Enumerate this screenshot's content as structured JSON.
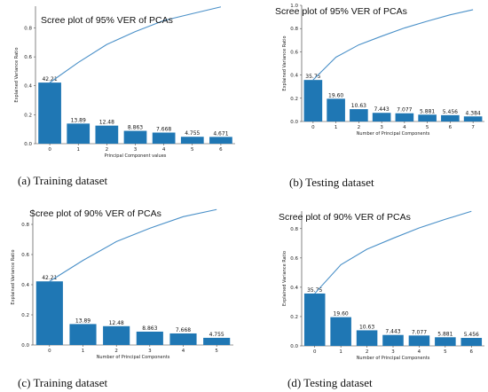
{
  "chart_data": [
    {
      "type": "bar",
      "title": "Scree plot of 95% VER of PCAs",
      "xlabel": "Principal Component values",
      "ylabel": "Explained Variance Ratio",
      "categories": [
        "0",
        "1",
        "2",
        "3",
        "4",
        "5",
        "6"
      ],
      "values": [
        0.4221,
        0.1389,
        0.1248,
        0.08863,
        0.07668,
        0.04755,
        0.04671
      ],
      "data_labels": [
        "42.21",
        "13.89",
        "12.48",
        "8.863",
        "7.668",
        "4.755",
        "4.671"
      ],
      "cumulative": [
        0.4221,
        0.561,
        0.6858,
        0.77443,
        0.85111,
        0.89866,
        0.94537
      ],
      "yticks": [
        "0.0",
        "0.2",
        "0.4",
        "0.6",
        "0.8"
      ],
      "ylim": [
        0,
        0.95
      ],
      "caption": "(a) Training dataset"
    },
    {
      "type": "bar",
      "title": "Scree plot of 95% VER of PCAs",
      "xlabel": "Number of Principal Components",
      "ylabel": "Explained Variance Ratio",
      "categories": [
        "0",
        "1",
        "2",
        "3",
        "4",
        "5",
        "6",
        "7"
      ],
      "values": [
        0.3575,
        0.196,
        0.1063,
        0.07443,
        0.07077,
        0.05881,
        0.05456,
        0.04384
      ],
      "data_labels": [
        "35.75",
        "19.60",
        "10.63",
        "7.443",
        "7.077",
        "5.881",
        "5.456",
        "4.384"
      ],
      "cumulative": [
        0.3575,
        0.5535,
        0.6598,
        0.73423,
        0.805,
        0.86381,
        0.91837,
        0.96221
      ],
      "yticks": [
        "0.0",
        "0.2",
        "0.4",
        "0.6",
        "0.8",
        "1.0"
      ],
      "ylim": [
        0,
        1.0
      ],
      "caption": "(b) Testing dataset"
    },
    {
      "type": "bar",
      "title": "Scree plot of 90% VER of PCAs",
      "xlabel": "Number of Principal Components",
      "ylabel": "Explained Variance Ratio",
      "categories": [
        "0",
        "1",
        "2",
        "3",
        "4",
        "5"
      ],
      "values": [
        0.4221,
        0.1389,
        0.1248,
        0.08863,
        0.07668,
        0.04755
      ],
      "data_labels": [
        "42.21",
        "13.89",
        "12.48",
        "8.863",
        "7.668",
        "4.755"
      ],
      "cumulative": [
        0.4221,
        0.561,
        0.6858,
        0.77443,
        0.85111,
        0.89866
      ],
      "yticks": [
        "0.0",
        "0.2",
        "0.4",
        "0.6",
        "0.8"
      ],
      "ylim": [
        0,
        0.9
      ],
      "caption": "(c) Training dataset"
    },
    {
      "type": "bar",
      "title": "Scree plot of 90% VER of PCAs",
      "xlabel": "Number of Principal Components",
      "ylabel": "Explained Variance Ratio",
      "categories": [
        "0",
        "1",
        "2",
        "3",
        "4",
        "5",
        "6"
      ],
      "values": [
        0.3575,
        0.196,
        0.1063,
        0.07443,
        0.07077,
        0.05881,
        0.05456
      ],
      "data_labels": [
        "35.75",
        "19.60",
        "10.63",
        "7.443",
        "7.077",
        "5.881",
        "5.456"
      ],
      "cumulative": [
        0.3575,
        0.5535,
        0.6598,
        0.73423,
        0.805,
        0.86381,
        0.91837
      ],
      "yticks": [
        "0.0",
        "0.2",
        "0.4",
        "0.6",
        "0.8"
      ],
      "ylim": [
        0,
        0.92
      ],
      "caption": "(d) Testing dataset"
    }
  ]
}
